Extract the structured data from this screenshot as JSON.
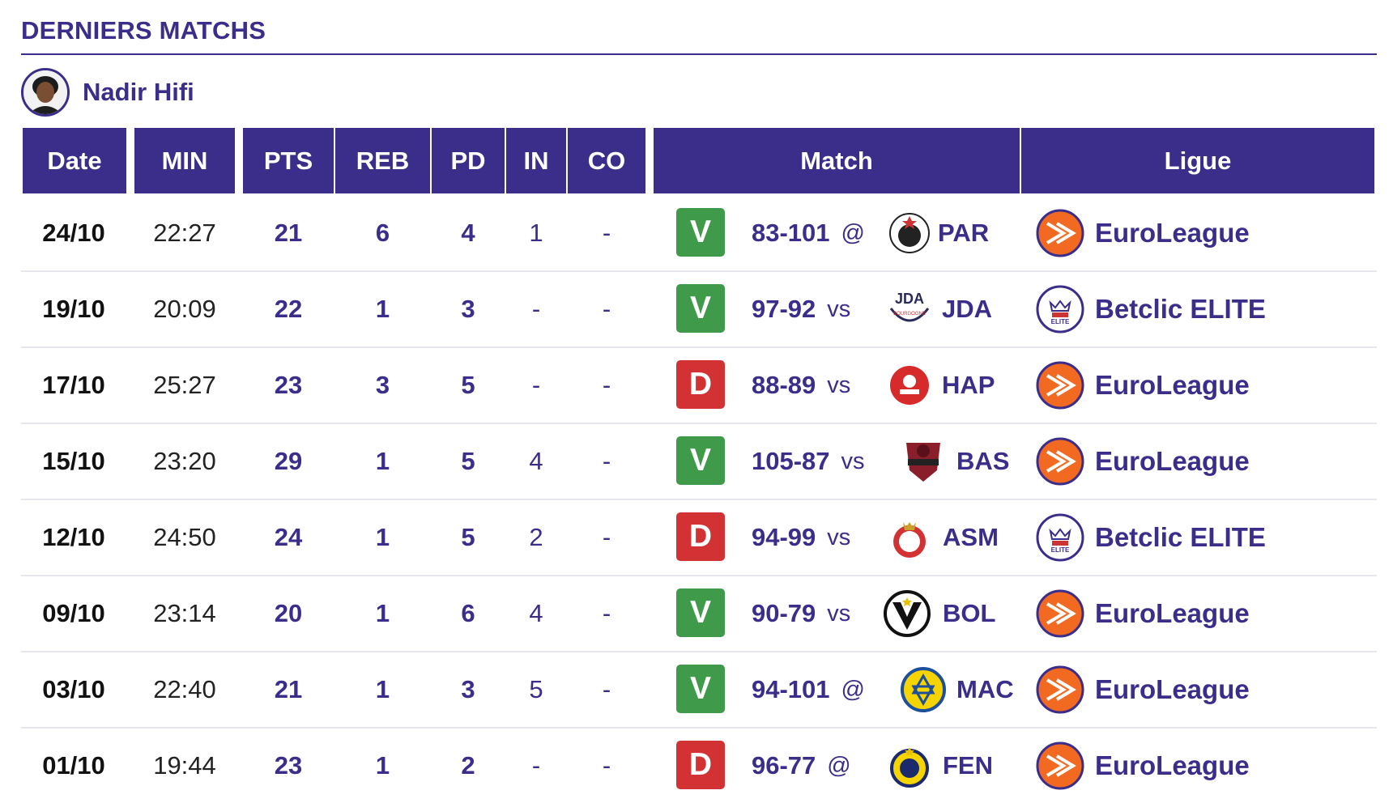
{
  "section": {
    "title": "DERNIERS MATCHS"
  },
  "player": {
    "name": "Nadir Hifi"
  },
  "columns": [
    "Date",
    "MIN",
    "PTS",
    "REB",
    "PD",
    "IN",
    "CO",
    "Match",
    "Ligue"
  ],
  "matches": [
    {
      "date": "24/10",
      "min": "22:27",
      "pts": "21",
      "reb": "6",
      "pd": "4",
      "in": "1",
      "co": "-",
      "result": "V",
      "score": "83-101",
      "sep": "@",
      "team": "PAR",
      "league": "EuroLeague"
    },
    {
      "date": "19/10",
      "min": "20:09",
      "pts": "22",
      "reb": "1",
      "pd": "3",
      "in": "-",
      "co": "-",
      "result": "V",
      "score": "97-92",
      "sep": "vs",
      "team": "JDA",
      "league": "Betclic ELITE"
    },
    {
      "date": "17/10",
      "min": "25:27",
      "pts": "23",
      "reb": "3",
      "pd": "5",
      "in": "-",
      "co": "-",
      "result": "D",
      "score": "88-89",
      "sep": "vs",
      "team": "HAP",
      "league": "EuroLeague"
    },
    {
      "date": "15/10",
      "min": "23:20",
      "pts": "29",
      "reb": "1",
      "pd": "5",
      "in": "4",
      "co": "-",
      "result": "V",
      "score": "105-87",
      "sep": "vs",
      "team": "BAS",
      "league": "EuroLeague"
    },
    {
      "date": "12/10",
      "min": "24:50",
      "pts": "24",
      "reb": "1",
      "pd": "5",
      "in": "2",
      "co": "-",
      "result": "D",
      "score": "94-99",
      "sep": "vs",
      "team": "ASM",
      "league": "Betclic ELITE"
    },
    {
      "date": "09/10",
      "min": "23:14",
      "pts": "20",
      "reb": "1",
      "pd": "6",
      "in": "4",
      "co": "-",
      "result": "V",
      "score": "90-79",
      "sep": "vs",
      "team": "BOL",
      "league": "EuroLeague"
    },
    {
      "date": "03/10",
      "min": "22:40",
      "pts": "21",
      "reb": "1",
      "pd": "3",
      "in": "5",
      "co": "-",
      "result": "V",
      "score": "94-101",
      "sep": "@",
      "team": "MAC",
      "league": "EuroLeague"
    },
    {
      "date": "01/10",
      "min": "19:44",
      "pts": "23",
      "reb": "1",
      "pd": "2",
      "in": "-",
      "co": "-",
      "result": "D",
      "score": "96-77",
      "sep": "@",
      "team": "FEN",
      "league": "EuroLeague"
    }
  ],
  "colors": {
    "primary": "#3a2e8a",
    "win": "#3f9a49",
    "loss": "#d23234",
    "euroleague": "#f26a21"
  },
  "icons": {
    "avatar": "player-avatar",
    "team": "team-crest-icon",
    "euroleague": "euroleague-logo-icon",
    "betclic": "betclic-elite-logo-icon"
  }
}
